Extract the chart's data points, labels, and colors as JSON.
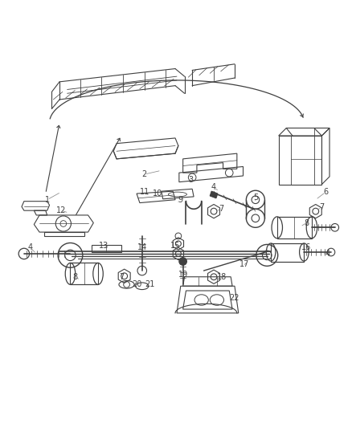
{
  "bg": "#ffffff",
  "fg": "#404040",
  "fig_w": 4.38,
  "fig_h": 5.33,
  "dpi": 100,
  "labels": [
    [
      "1",
      52,
      248,
      70,
      238
    ],
    [
      "2",
      178,
      215,
      200,
      210
    ],
    [
      "3",
      238,
      222,
      238,
      218
    ],
    [
      "4",
      268,
      232,
      275,
      237
    ],
    [
      "4",
      30,
      310,
      38,
      318
    ],
    [
      "4",
      415,
      318,
      408,
      318
    ],
    [
      "5",
      322,
      245,
      322,
      252
    ],
    [
      "6",
      413,
      238,
      400,
      248
    ],
    [
      "7",
      278,
      260,
      270,
      263
    ],
    [
      "7",
      408,
      258,
      400,
      262
    ],
    [
      "7",
      148,
      348,
      148,
      345
    ],
    [
      "8",
      388,
      278,
      380,
      283
    ],
    [
      "8",
      88,
      348,
      95,
      352
    ],
    [
      "9",
      225,
      248,
      220,
      253
    ],
    [
      "10",
      195,
      240,
      198,
      243
    ],
    [
      "11",
      178,
      238,
      185,
      243
    ],
    [
      "12",
      70,
      262,
      80,
      265
    ],
    [
      "13",
      125,
      308,
      130,
      310
    ],
    [
      "14",
      175,
      310,
      178,
      315
    ],
    [
      "15",
      218,
      308,
      220,
      312
    ],
    [
      "16",
      388,
      310,
      382,
      315
    ],
    [
      "17",
      308,
      332,
      310,
      330
    ],
    [
      "18",
      278,
      348,
      272,
      348
    ],
    [
      "19",
      228,
      345,
      228,
      348
    ],
    [
      "20",
      168,
      358,
      162,
      358
    ],
    [
      "21",
      185,
      358,
      182,
      360
    ],
    [
      "22",
      295,
      375,
      290,
      372
    ]
  ]
}
